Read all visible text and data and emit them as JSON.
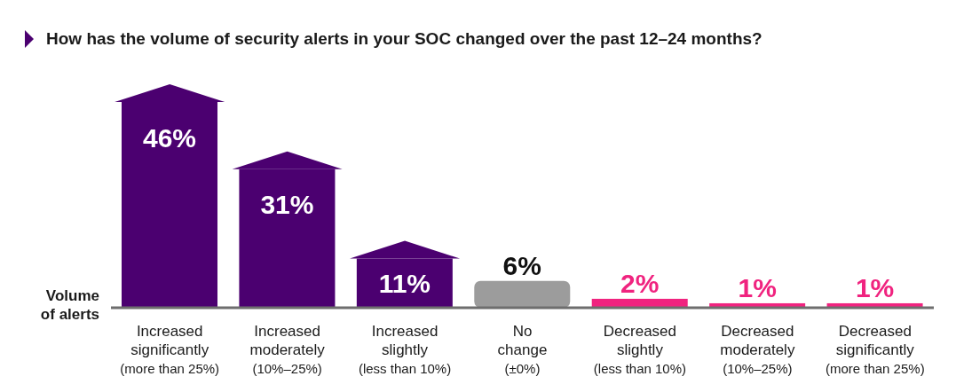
{
  "chart_data": {
    "type": "bar",
    "title": "How has the volume of security alerts in your SOC changed over the past 12–24 months?",
    "ylabel": "Volume of alerts",
    "categories": [
      "Increased\nsignificantly\n(more than 25%)",
      "Increased\nmoderately\n(10%–25%)",
      "Increased\nslightly\n(less than 10%)",
      "No\nchange\n(±0%)",
      "Decreased\nslightly\n(less than 10%)",
      "Decreased\nmoderately\n(10%–25%)",
      "Decreased\nsignificantly\n(more than 25%)"
    ],
    "values": [
      46,
      31,
      11,
      6,
      2,
      1,
      1
    ],
    "colors": [
      "#4b0070",
      "#4b0070",
      "#4b0070",
      "#9c9c9c",
      "#f0237f",
      "#f0237f",
      "#f0237f"
    ],
    "value_labels": [
      "46%",
      "31%",
      "11%",
      "6%",
      "2%",
      "1%",
      "1%"
    ]
  }
}
